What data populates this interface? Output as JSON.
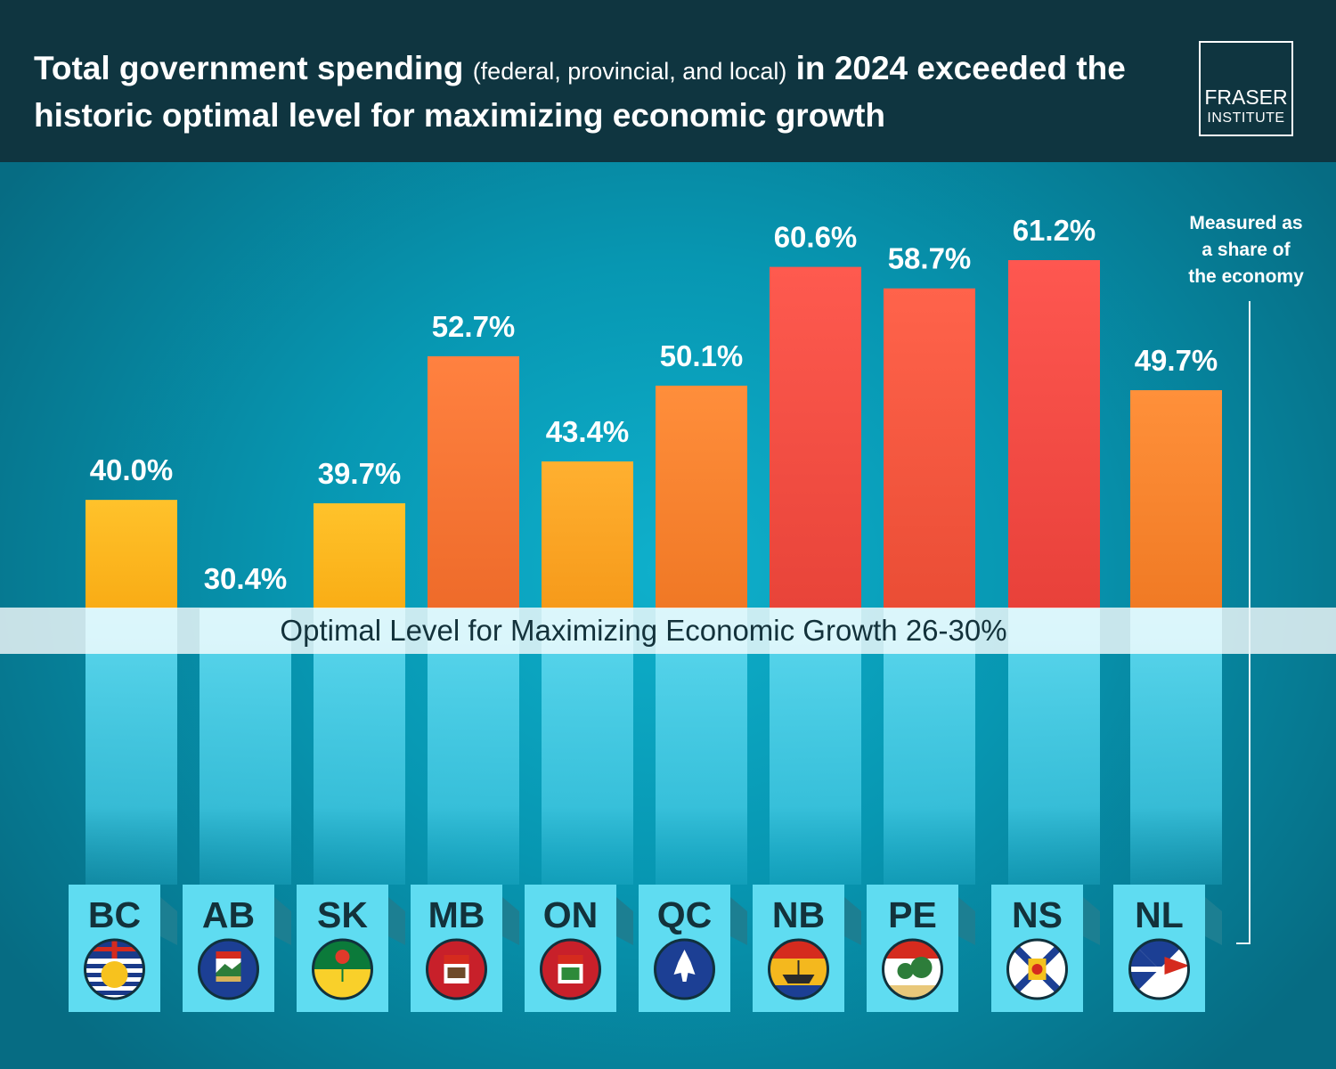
{
  "header": {
    "title_part1": "Total government spending",
    "title_sub": "(federal, provincial, and local)",
    "title_part2": "in 2024 exceeded the historic optimal level for maximizing economic growth",
    "logo_line1": "FRASER",
    "logo_line2": "INSTITUTE"
  },
  "note": {
    "line1": "Measured as",
    "line2": "a share of",
    "line3": "the economy"
  },
  "band": {
    "label": "Optimal Level for Maximizing Economic Growth 26-30%"
  },
  "colors": {
    "header_bg": "#0f3540",
    "plot_bg": "#0797b2",
    "bar_low": "#fbb612",
    "bar_high": "#e8413a",
    "label_card": "#5fdcf1",
    "label_text": "#13323b"
  },
  "chart_data": {
    "type": "bar",
    "categories": [
      "BC",
      "AB",
      "SK",
      "MB",
      "ON",
      "QC",
      "NB",
      "PE",
      "NS",
      "NL"
    ],
    "values": [
      40.0,
      30.4,
      39.7,
      52.7,
      43.4,
      50.1,
      60.6,
      58.7,
      61.2,
      49.7
    ],
    "value_labels": [
      "40.0%",
      "30.4%",
      "39.7%",
      "52.7%",
      "43.4%",
      "50.1%",
      "60.6%",
      "58.7%",
      "61.2%",
      "49.7%"
    ],
    "icons": [
      "bc-flag-icon",
      "ab-flag-icon",
      "sk-flag-icon",
      "mb-flag-icon",
      "on-flag-icon",
      "qc-flag-icon",
      "nb-flag-icon",
      "pe-flag-icon",
      "ns-flag-icon",
      "nl-flag-icon"
    ],
    "optimal_range": [
      26,
      30
    ],
    "unit": "%"
  }
}
